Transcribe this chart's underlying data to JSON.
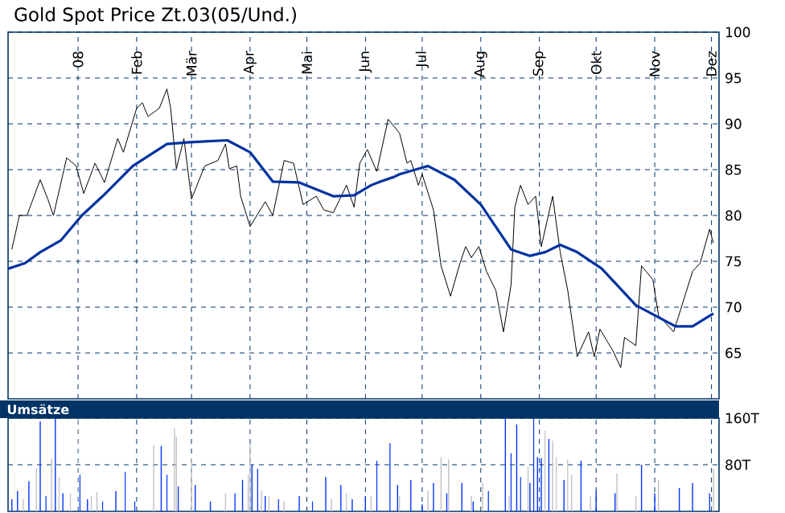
{
  "chart_data": [
    {
      "type": "line",
      "title": "Gold Spot Price Zt.03(05/Und.)",
      "xlim": [
        "2007-11-25",
        "2008-12-05"
      ],
      "ylim": [
        60,
        100
      ],
      "xticks": [
        {
          "value": "2008-01-01",
          "label": "08"
        },
        {
          "value": "2008-02-01",
          "label": "Feb"
        },
        {
          "value": "2008-03-01",
          "label": "Mär"
        },
        {
          "value": "2008-04-01",
          "label": "Apr"
        },
        {
          "value": "2008-05-01",
          "label": "Mai"
        },
        {
          "value": "2008-06-01",
          "label": "Jun"
        },
        {
          "value": "2008-07-01",
          "label": "Jul"
        },
        {
          "value": "2008-08-01",
          "label": "Aug"
        },
        {
          "value": "2008-09-01",
          "label": "Sep"
        },
        {
          "value": "2008-10-01",
          "label": "Okt"
        },
        {
          "value": "2008-11-01",
          "label": "Nov"
        },
        {
          "value": "2008-12-01",
          "label": "Dez"
        }
      ],
      "yticks": [
        65,
        70,
        75,
        80,
        85,
        90,
        95,
        100
      ],
      "grid": true,
      "series": [
        {
          "color": "#000000",
          "x": [
            "2007-11-27",
            "2007-12-01",
            "2007-12-05",
            "2007-12-12",
            "2007-12-16",
            "2007-12-19",
            "2007-12-26",
            "2007-12-31",
            "2008-01-04",
            "2008-01-10",
            "2008-01-15",
            "2008-01-22",
            "2008-01-25",
            "2008-02-01",
            "2008-02-04",
            "2008-02-07",
            "2008-02-13",
            "2008-02-17",
            "2008-02-19",
            "2008-02-22",
            "2008-02-26",
            "2008-03-01",
            "2008-03-08",
            "2008-03-15",
            "2008-03-19",
            "2008-03-21",
            "2008-03-25",
            "2008-03-27",
            "2008-04-01",
            "2008-04-09",
            "2008-04-13",
            "2008-04-19",
            "2008-04-24",
            "2008-04-29",
            "2008-05-06",
            "2008-05-10",
            "2008-05-15",
            "2008-05-22",
            "2008-05-26",
            "2008-05-29",
            "2008-06-02",
            "2008-06-07",
            "2008-06-13",
            "2008-06-19",
            "2008-06-23",
            "2008-06-25",
            "2008-06-29",
            "2008-07-01",
            "2008-07-07",
            "2008-07-11",
            "2008-07-16",
            "2008-07-21",
            "2008-07-24",
            "2008-07-27",
            "2008-07-31",
            "2008-08-04",
            "2008-08-09",
            "2008-08-13",
            "2008-08-17",
            "2008-08-19",
            "2008-08-22",
            "2008-08-26",
            "2008-08-30",
            "2008-09-02",
            "2008-09-08",
            "2008-09-12",
            "2008-09-16",
            "2008-09-21",
            "2008-09-27",
            "2008-09-30",
            "2008-10-03",
            "2008-10-10",
            "2008-10-14",
            "2008-10-16",
            "2008-10-22",
            "2008-10-25",
            "2008-10-31",
            "2008-11-03",
            "2008-11-11",
            "2008-11-16",
            "2008-11-21",
            "2008-11-25",
            "2008-11-30",
            "2008-12-02"
          ],
          "values": [
            76.3,
            80.0,
            80.0,
            83.9,
            81.8,
            80.0,
            86.3,
            85.4,
            82.4,
            85.7,
            83.6,
            88.4,
            86.9,
            91.7,
            92.3,
            90.8,
            91.7,
            93.8,
            91.7,
            85.1,
            88.4,
            81.8,
            85.4,
            86.0,
            87.8,
            85.1,
            85.4,
            82.1,
            78.8,
            81.5,
            80.0,
            86.0,
            85.7,
            81.2,
            82.1,
            80.6,
            80.3,
            83.3,
            80.9,
            85.7,
            87.2,
            84.8,
            90.5,
            89.0,
            85.7,
            86.0,
            83.3,
            84.5,
            80.6,
            74.5,
            71.2,
            74.8,
            76.6,
            75.4,
            76.6,
            73.9,
            71.8,
            67.3,
            72.4,
            80.9,
            83.3,
            81.2,
            82.1,
            76.6,
            82.1,
            76.0,
            71.8,
            64.6,
            67.3,
            64.6,
            67.6,
            65.2,
            63.4,
            66.7,
            65.8,
            74.5,
            73.0,
            69.1,
            67.3,
            70.6,
            73.9,
            74.8,
            78.5,
            77.0
          ]
        },
        {
          "color": "#0033a0",
          "x": [
            "2007-11-25",
            "2007-12-04",
            "2007-12-12",
            "2007-12-23",
            "2008-01-03",
            "2008-01-14",
            "2008-01-30",
            "2008-02-17",
            "2008-02-29",
            "2008-03-20",
            "2008-04-01",
            "2008-04-13",
            "2008-04-27",
            "2008-05-15",
            "2008-05-26",
            "2008-06-04",
            "2008-06-09",
            "2008-06-16",
            "2008-06-19",
            "2008-07-04",
            "2008-07-18",
            "2008-08-01",
            "2008-08-17",
            "2008-08-27",
            "2008-09-04",
            "2008-09-12",
            "2008-09-21",
            "2008-10-04",
            "2008-10-22",
            "2008-11-12",
            "2008-11-21",
            "2008-12-02"
          ],
          "values": [
            74.2,
            74.8,
            76.0,
            77.3,
            80.0,
            82.1,
            85.4,
            87.8,
            88.0,
            88.2,
            86.9,
            83.7,
            83.6,
            82.1,
            82.2,
            83.3,
            83.7,
            84.2,
            84.5,
            85.4,
            83.9,
            81.2,
            76.3,
            75.6,
            76.0,
            76.8,
            76.0,
            74.2,
            70.2,
            67.9,
            67.9,
            69.3
          ]
        }
      ]
    },
    {
      "type": "bar",
      "title": "Umsätze",
      "xlim": [
        "2007-11-25",
        "2008-12-05"
      ],
      "ylim": [
        0,
        160
      ],
      "xticks": [
        {
          "value": "2008-01-01",
          "label": null
        },
        {
          "value": "2008-02-01",
          "label": null
        },
        {
          "value": "2008-03-01",
          "label": null
        },
        {
          "value": "2008-04-01",
          "label": null
        },
        {
          "value": "2008-05-01",
          "label": null
        },
        {
          "value": "2008-06-01",
          "label": null
        },
        {
          "value": "2008-07-01",
          "label": null
        },
        {
          "value": "2008-08-01",
          "label": null
        },
        {
          "value": "2008-09-01",
          "label": null
        },
        {
          "value": "2008-10-01",
          "label": null
        },
        {
          "value": "2008-11-01",
          "label": null
        },
        {
          "value": "2008-12-01",
          "label": null
        }
      ],
      "yticks": [
        {
          "value": 80,
          "label": "80T"
        },
        {
          "value": 160,
          "label": "160T"
        }
      ],
      "grid": true,
      "tick_labels": "y",
      "x": [
        "2007-11-27",
        "2007-11-30",
        "2007-12-03",
        "2007-12-06",
        "2007-12-10",
        "2007-12-12",
        "2007-12-15",
        "2007-12-18",
        "2007-12-20",
        "2007-12-22",
        "2007-12-24",
        "2007-12-28",
        "2008-01-02",
        "2008-01-06",
        "2008-01-08",
        "2008-01-11",
        "2008-01-14",
        "2008-01-21",
        "2008-01-26",
        "2008-01-31",
        "2008-02-10",
        "2008-02-14",
        "2008-02-17",
        "2008-02-21",
        "2008-02-22",
        "2008-02-23",
        "2008-03-01",
        "2008-03-03",
        "2008-03-11",
        "2008-03-19",
        "2008-03-24",
        "2008-03-28",
        "2008-03-31",
        "2008-04-01",
        "2008-04-02",
        "2008-04-05",
        "2008-04-07",
        "2008-04-09",
        "2008-04-11",
        "2008-04-16",
        "2008-04-19",
        "2008-04-27",
        "2008-05-04",
        "2008-05-11",
        "2008-05-14",
        "2008-05-19",
        "2008-05-22",
        "2008-05-25",
        "2008-06-01",
        "2008-06-04",
        "2008-06-07",
        "2008-06-14",
        "2008-06-18",
        "2008-06-19",
        "2008-06-25",
        "2008-07-01",
        "2008-07-04",
        "2008-07-07",
        "2008-07-11",
        "2008-07-14",
        "2008-07-15",
        "2008-07-22",
        "2008-07-27",
        "2008-07-28",
        "2008-08-02",
        "2008-08-05",
        "2008-08-14",
        "2008-08-16",
        "2008-08-17",
        "2008-08-20",
        "2008-08-22",
        "2008-08-26",
        "2008-08-27",
        "2008-08-29",
        "2008-08-31",
        "2008-09-02",
        "2008-09-04",
        "2008-09-06",
        "2008-09-08",
        "2008-09-10",
        "2008-09-14",
        "2008-09-16",
        "2008-09-18",
        "2008-09-23",
        "2008-09-28",
        "2008-10-01",
        "2008-10-11",
        "2008-10-12",
        "2008-10-22",
        "2008-10-25",
        "2008-11-01",
        "2008-11-03",
        "2008-11-14",
        "2008-11-21",
        "2008-11-30",
        "2008-12-02"
      ],
      "values": [
        21,
        35,
        21,
        52,
        74,
        154,
        26,
        91,
        160,
        59,
        31,
        31,
        63,
        21,
        26,
        33,
        17,
        35,
        68,
        17,
        114,
        112,
        63,
        142,
        128,
        43,
        91,
        45,
        17,
        31,
        31,
        54,
        63,
        117,
        80,
        73,
        35,
        26,
        26,
        21,
        17,
        26,
        17,
        59,
        21,
        45,
        31,
        21,
        26,
        26,
        87,
        117,
        45,
        26,
        54,
        12,
        35,
        49,
        93,
        31,
        89,
        49,
        26,
        17,
        49,
        35,
        160,
        26,
        100,
        149,
        59,
        77,
        49,
        160,
        93,
        91,
        138,
        124,
        121,
        93,
        54,
        89,
        63,
        87,
        26,
        35,
        31,
        65,
        26,
        80,
        31,
        54,
        40,
        49,
        31,
        73
      ],
      "colors": [
        "#0033ff",
        "#0033ff",
        "#c0c0c0",
        "#0033ff",
        "#c0c0c0",
        "#0033ff",
        "#0033ff",
        "#c0c0c0",
        "#0033ff",
        "#c0c0c0",
        "#0033ff",
        "#c0c0c0",
        "#0033ff",
        "#0033ff",
        "#c0c0c0",
        "#c0c0c0",
        "#0033ff",
        "#0033ff",
        "#0033ff",
        "#0033ff",
        "#c0c0c0",
        "#0033ff",
        "#0033ff",
        "#c0c0c0",
        "#c0c0c0",
        "#0033ff",
        "#c0c0c0",
        "#0033ff",
        "#0033ff",
        "#c0c0c0",
        "#0033ff",
        "#0033ff",
        "#c0c0c0",
        "#c0c0c0",
        "#0033ff",
        "#0033ff",
        "#c0c0c0",
        "#0033ff",
        "#c0c0c0",
        "#0033ff",
        "#c0c0c0",
        "#0033ff",
        "#0033ff",
        "#0033ff",
        "#c0c0c0",
        "#0033ff",
        "#c0c0c0",
        "#0033ff",
        "#0033ff",
        "#c0c0c0",
        "#0033ff",
        "#0033ff",
        "#0033ff",
        "#c0c0c0",
        "#0033ff",
        "#0033ff",
        "#c0c0c0",
        "#0033ff",
        "#c0c0c0",
        "#0033ff",
        "#c0c0c0",
        "#0033ff",
        "#c0c0c0",
        "#0033ff",
        "#c0c0c0",
        "#0033ff",
        "#0033ff",
        "#c0c0c0",
        "#0033ff",
        "#0033ff",
        "#0033ff",
        "#c0c0c0",
        "#0033ff",
        "#0033ff",
        "#0033ff",
        "#0033ff",
        "#c0c0c0",
        "#0033ff",
        "#c0c0c0",
        "#c0c0c0",
        "#0033ff",
        "#c0c0c0",
        "#c0c0c0",
        "#0033ff",
        "#c0c0c0",
        "#0033ff",
        "#0033ff",
        "#c0c0c0",
        "#c0c0c0",
        "#0033ff",
        "#0033ff",
        "#c0c0c0",
        "#0033ff",
        "#0033ff",
        "#0033ff",
        "#c0c0c0"
      ]
    }
  ]
}
